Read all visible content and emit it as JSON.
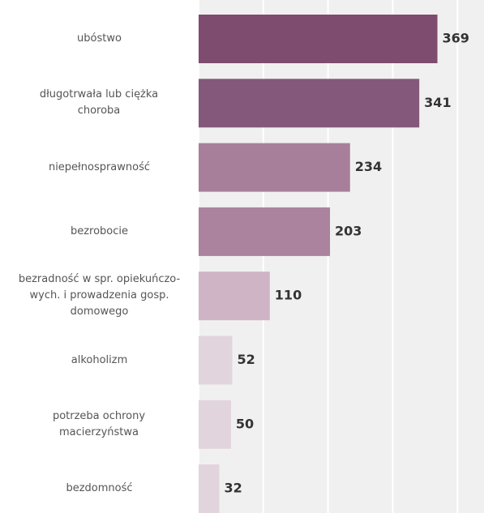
{
  "chart_data": {
    "type": "bar",
    "orientation": "horizontal",
    "categories": [
      "ubóstwo",
      "długotrwała lub ciężka choroba",
      "niepełnosprawność",
      "bezrobocie",
      "bezradność w spr. opiekuńczo-wych. i prowadzenia gosp. domowego",
      "alkoholizm",
      "potrzeba ochrony macierzyństwa",
      "bezdomność"
    ],
    "values": [
      369,
      341,
      234,
      203,
      110,
      52,
      50,
      32
    ],
    "colors": [
      "#7d4c6e",
      "#84587a",
      "#a87f9b",
      "#ab839e",
      "#cfb4c6",
      "#e2d4dd",
      "#e2d4dd",
      "#e2d4dd"
    ],
    "xlim": [
      0,
      441
    ],
    "xticks": [
      0,
      100,
      200,
      300,
      400
    ],
    "grid": true
  }
}
